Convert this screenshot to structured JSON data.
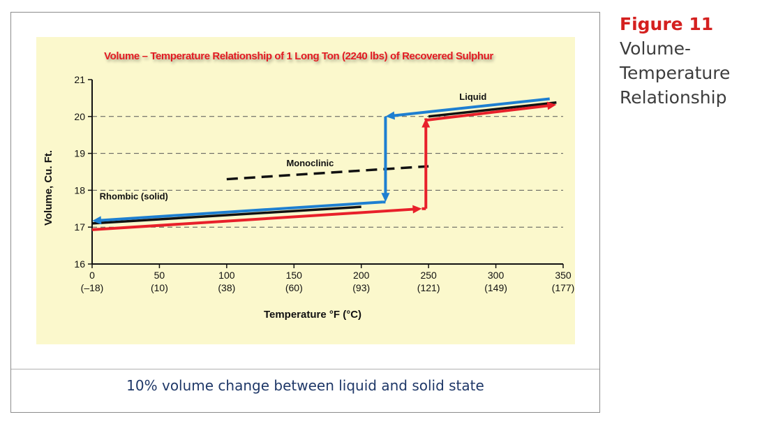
{
  "side_caption": {
    "figure_number": "Figure 11",
    "title_lines": [
      "Volume-",
      "Temperature",
      "Relationship"
    ]
  },
  "bottom_caption": "10% volume change between liquid and solid state",
  "colors": {
    "panel": "#fbf8cc",
    "blue": "#1e7fd1",
    "red": "#e8202a",
    "black": "#111111",
    "title": "#e11b22",
    "caption": "#1f3868"
  },
  "chart_data": {
    "type": "line",
    "title": "Volume – Temperature Relationship of 1 Long Ton (2240 lbs) of Recovered Sulphur",
    "xlabel": "Temperature °F (°C)",
    "ylabel": "Volume, Cu. Ft.",
    "xlim": [
      0,
      350
    ],
    "ylim": [
      16,
      21
    ],
    "x_ticks": [
      0,
      50,
      100,
      150,
      200,
      250,
      300,
      350
    ],
    "x_tick_labels": [
      "0",
      "50",
      "100",
      "150",
      "200",
      "250",
      "300",
      "350"
    ],
    "x_tick_sublabels": [
      "(–18)",
      "(10)",
      "(38)",
      "(60)",
      "(93)",
      "(121)",
      "(149)",
      "(177)"
    ],
    "y_ticks": [
      16,
      17,
      18,
      19,
      20,
      21
    ],
    "y_tick_labels": [
      "16",
      "17",
      "18",
      "19",
      "20",
      "21"
    ],
    "grid": {
      "horizontal": [
        17,
        18,
        19,
        20
      ],
      "style": "dashed"
    },
    "series": [
      {
        "name": "Rhombic (solid)",
        "color": "#111111",
        "style": "solid",
        "x": [
          0,
          200
        ],
        "y": [
          17.1,
          17.55
        ]
      },
      {
        "name": "Monoclinic",
        "color": "#111111",
        "style": "dashed",
        "x": [
          100,
          250
        ],
        "y": [
          18.3,
          18.65
        ]
      },
      {
        "name": "Liquid",
        "color": "#111111",
        "style": "solid",
        "x": [
          250,
          345
        ],
        "y": [
          20.0,
          20.38
        ]
      },
      {
        "name": "",
        "color": "#1e7fd1",
        "style": "arrow",
        "x": [
          340,
          218,
          218,
          216,
          0
        ],
        "y": [
          20.48,
          20.0,
          17.68,
          17.68,
          17.17
        ]
      },
      {
        "name": "",
        "color": "#e8202a",
        "style": "arrow",
        "x": [
          0,
          245,
          248,
          248,
          248,
          345
        ],
        "y": [
          16.93,
          17.5,
          17.5,
          19.95,
          19.9,
          20.32
        ]
      }
    ],
    "annotations": [
      {
        "text": "Liquid",
        "x": 283,
        "y": 20.45
      },
      {
        "text": "Monoclinic",
        "x": 162,
        "y": 18.65
      },
      {
        "text": "Rhombic (solid)",
        "x": 31,
        "y": 17.75
      }
    ]
  }
}
